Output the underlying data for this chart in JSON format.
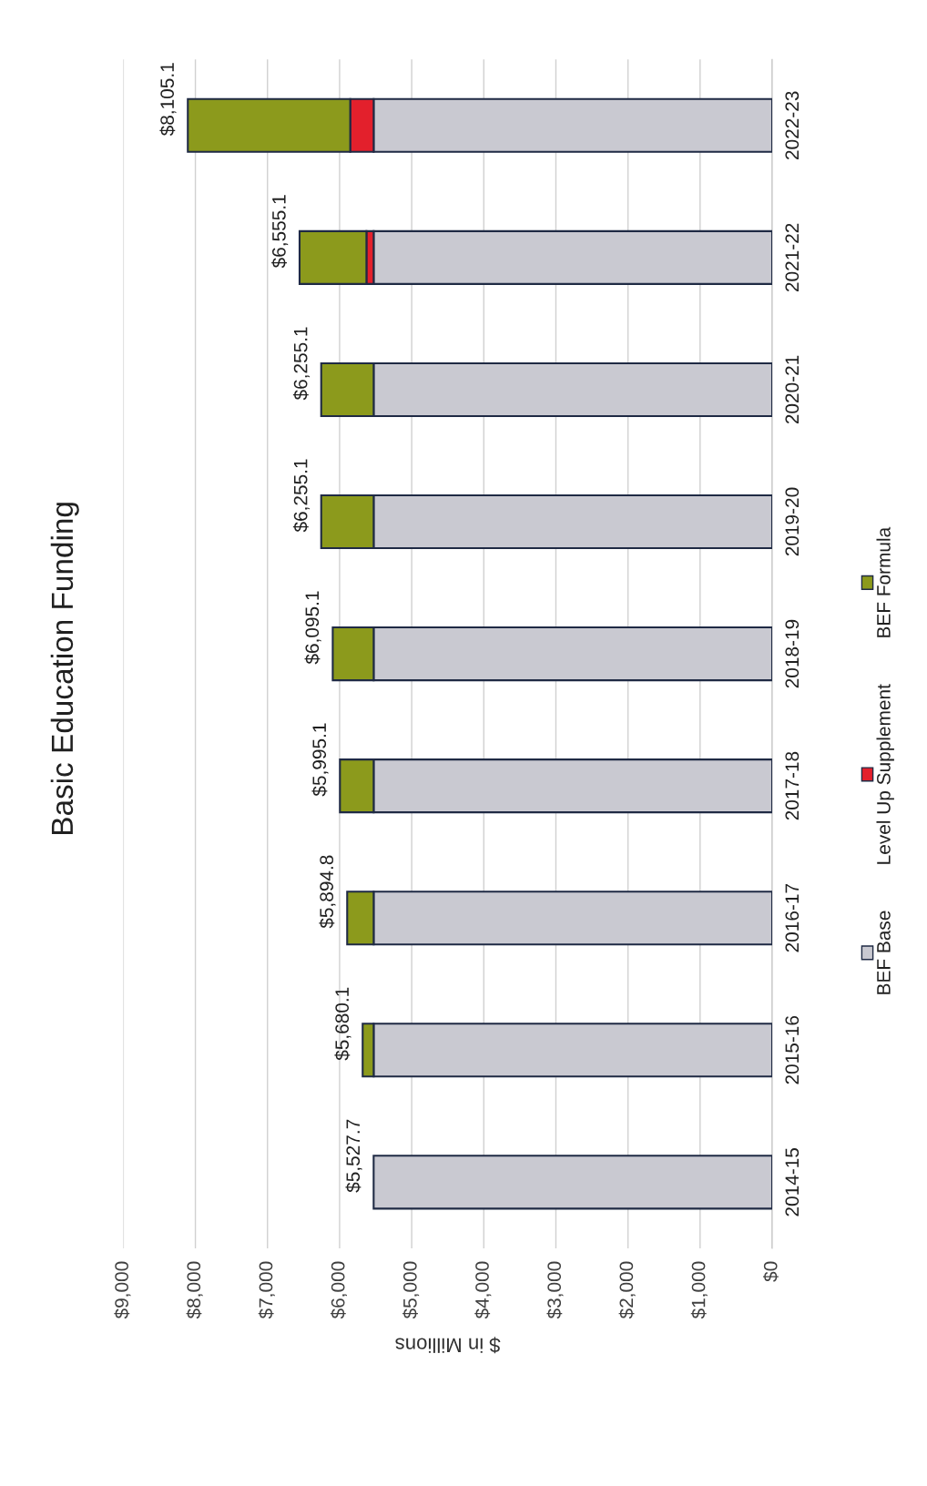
{
  "chart_data": {
    "type": "bar",
    "orientation": "horizontal",
    "stacked": true,
    "title": "Basic Education Funding",
    "xlabel": "$ in Millions",
    "categories": [
      "2022-23",
      "2021-22",
      "2020-21",
      "2019-20",
      "2018-19",
      "2017-18",
      "2016-17",
      "2015-16",
      "2014-15"
    ],
    "series": [
      {
        "name": "BEF Base",
        "color": "#c9c9d1",
        "values": [
          5527.7,
          5527.7,
          5527.7,
          5527.7,
          5527.7,
          5527.7,
          5527.7,
          5527.7,
          5527.7
        ]
      },
      {
        "name": "Level Up Supplement",
        "color": "#e3202c",
        "values": [
          325,
          100,
          0,
          0,
          0,
          0,
          0,
          0,
          0
        ]
      },
      {
        "name": "BEF Formula",
        "color": "#8c9a1c",
        "values": [
          2252.4,
          927.4,
          727.4,
          727.4,
          567.4,
          467.4,
          367.1,
          152.4,
          0
        ]
      }
    ],
    "totals": [
      "$8,105.1",
      "$6,555.1",
      "$6,255.1",
      "$6,255.1",
      "$6,095.1",
      "$5,995.1",
      "$5,894.8",
      "$5,680.1",
      "$5,527.7"
    ],
    "xlim": [
      9000,
      0
    ],
    "xticks": [
      {
        "value": 9000,
        "label": "$9,000"
      },
      {
        "value": 8000,
        "label": "$8,000"
      },
      {
        "value": 7000,
        "label": "$7,000"
      },
      {
        "value": 6000,
        "label": "$6,000"
      },
      {
        "value": 5000,
        "label": "$5,000"
      },
      {
        "value": 4000,
        "label": "$4,000"
      },
      {
        "value": 3000,
        "label": "$3,000"
      },
      {
        "value": 2000,
        "label": "$2,000"
      },
      {
        "value": 1000,
        "label": "$1,000"
      },
      {
        "value": 0,
        "label": "$0"
      }
    ],
    "grid": "x",
    "legend": "right"
  }
}
